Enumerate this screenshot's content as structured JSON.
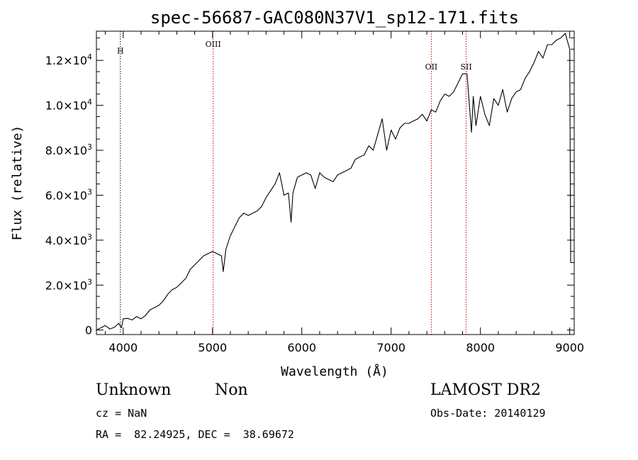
{
  "chart_data": {
    "type": "line",
    "title": "spec-56687-GAC080N37V1_sp12-171.fits",
    "xlabel": "Wavelength (Å)",
    "ylabel": "Flux (relative)",
    "xlim": [
      3700,
      9050
    ],
    "ylim": [
      -200,
      13300
    ],
    "xticks": [
      4000,
      5000,
      6000,
      7000,
      8000,
      9000
    ],
    "xtick_labels": [
      "4000",
      "5000",
      "6000",
      "7000",
      "8000",
      "9000"
    ],
    "yticks": [
      0,
      2000,
      4000,
      6000,
      8000,
      10000,
      12000
    ],
    "ytick_labels": [
      {
        "mantissa": "0",
        "exp": ""
      },
      {
        "mantissa": "2.0×10",
        "exp": "3"
      },
      {
        "mantissa": "4.0×10",
        "exp": "3"
      },
      {
        "mantissa": "6.0×10",
        "exp": "3"
      },
      {
        "mantissa": "8.0×10",
        "exp": "3"
      },
      {
        "mantissa": "1.0×10",
        "exp": "4"
      },
      {
        "mantissa": "1.2×10",
        "exp": "4"
      }
    ],
    "grid": false,
    "lines": [
      {
        "label": "H",
        "x": 3968,
        "label_y": 12300,
        "color": "#000000"
      },
      {
        "label": "OIII",
        "x": 5007,
        "label_y": 12600,
        "color": "#cc0000"
      },
      {
        "label": "OII",
        "x": 7450,
        "label_y": 11600,
        "color": "#cc0000"
      },
      {
        "label": "SII",
        "x": 7840,
        "label_y": 11600,
        "color": "#cc0000"
      }
    ],
    "series": [
      {
        "x": [
          3700,
          3750,
          3800,
          3850,
          3900,
          3950,
          3980,
          4000,
          4050,
          4100,
          4150,
          4200,
          4250,
          4300,
          4350,
          4400,
          4450,
          4500,
          4550,
          4600,
          4650,
          4700,
          4750,
          4800,
          4850,
          4900,
          4950,
          5000,
          5050,
          5100,
          5120,
          5150,
          5200,
          5250,
          5300,
          5350,
          5400,
          5450,
          5500,
          5550,
          5600,
          5650,
          5700,
          5750,
          5800,
          5850,
          5880,
          5900,
          5950,
          6000,
          6050,
          6100,
          6150,
          6200,
          6250,
          6300,
          6350,
          6400,
          6450,
          6500,
          6550,
          6600,
          6650,
          6700,
          6750,
          6800,
          6850,
          6900,
          6950,
          7000,
          7050,
          7100,
          7150,
          7200,
          7250,
          7300,
          7350,
          7400,
          7450,
          7500,
          7550,
          7600,
          7650,
          7700,
          7750,
          7800,
          7850,
          7900,
          7920,
          7950,
          8000,
          8050,
          8100,
          8150,
          8200,
          8250,
          8300,
          8350,
          8400,
          8450,
          8500,
          8550,
          8600,
          8650,
          8700,
          8750,
          8800,
          8850,
          8900,
          8950,
          9000,
          9010
        ],
        "y": [
          0,
          100,
          200,
          50,
          120,
          300,
          100,
          500,
          520,
          450,
          600,
          500,
          650,
          900,
          1000,
          1100,
          1300,
          1600,
          1800,
          1900,
          2100,
          2300,
          2700,
          2900,
          3100,
          3300,
          3400,
          3500,
          3400,
          3300,
          2600,
          3600,
          4200,
          4600,
          5000,
          5200,
          5100,
          5200,
          5300,
          5500,
          5900,
          6200,
          6500,
          7000,
          6000,
          6100,
          4800,
          6100,
          6800,
          6900,
          7000,
          6900,
          6300,
          7000,
          6800,
          6700,
          6600,
          6900,
          7000,
          7100,
          7200,
          7600,
          7700,
          7800,
          8200,
          8000,
          8700,
          9400,
          8000,
          8900,
          8500,
          9000,
          9200,
          9200,
          9300,
          9400,
          9600,
          9300,
          9800,
          9700,
          10200,
          10500,
          10400,
          10600,
          11000,
          11400,
          11400,
          8800,
          10400,
          9100,
          10400,
          9600,
          9100,
          10300,
          10000,
          10700,
          9700,
          10300,
          10600,
          10700,
          11200,
          11500,
          11900,
          12400,
          12100,
          12700,
          12700,
          12900,
          13000,
          13200,
          12500,
          3000
        ]
      }
    ]
  },
  "info": {
    "class_text": "Unknown",
    "subclass_text": "Non",
    "cz_text": "cz = NaN",
    "radec_text": "RA =  82.24925, DEC =  38.69672",
    "survey_text": "LAMOST DR2",
    "obsdate_text": "Obs-Date: 20140129"
  }
}
